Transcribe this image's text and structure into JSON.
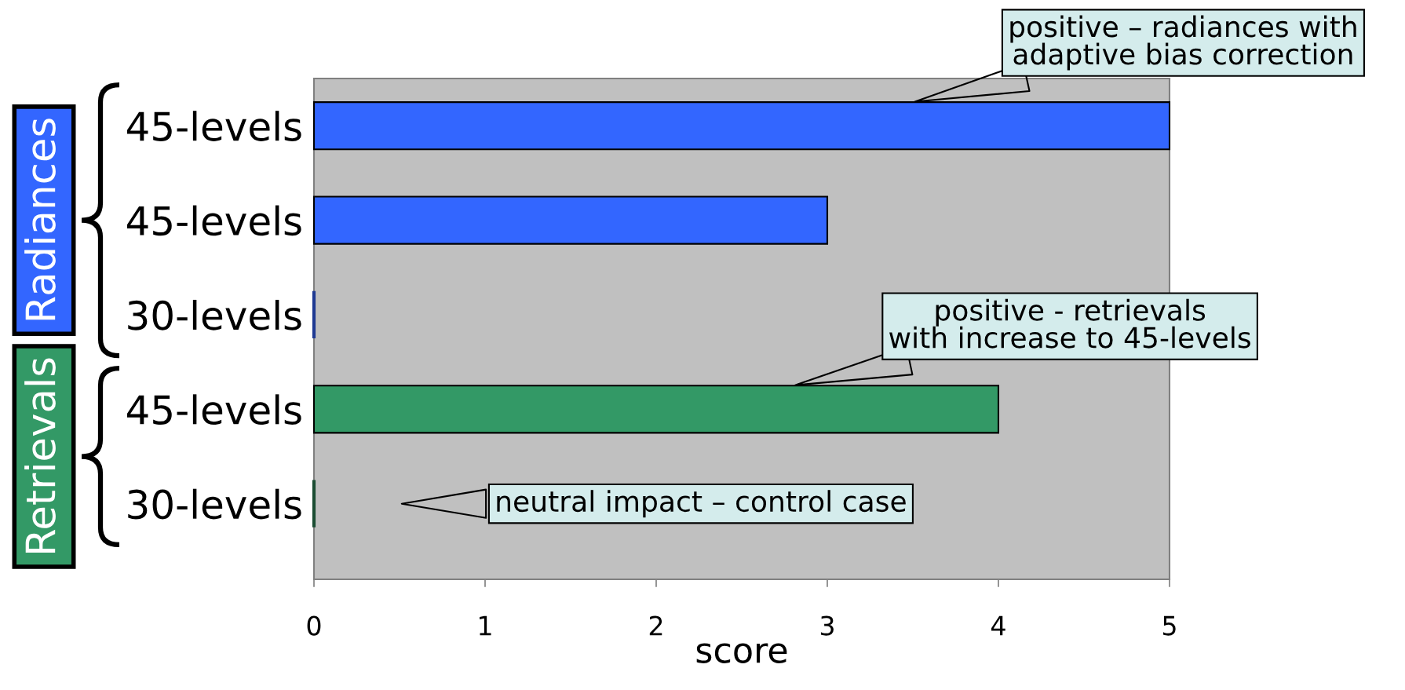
{
  "chart_data": [
    {
      "type": "bar",
      "orientation": "horizontal",
      "ylabel": "Radiances",
      "categories": [
        "45-levels",
        "45-levels",
        "30-levels"
      ],
      "values": [
        5,
        3,
        0
      ],
      "colors": [
        "#3366ff",
        "#3366ff",
        "#1f3a93"
      ],
      "xlim": [
        0,
        5
      ],
      "xticks": [
        0,
        1,
        2,
        3,
        4,
        5
      ],
      "tick_labels": "y",
      "annotations": [
        "positive – radiances with\nadaptive bias correction"
      ]
    },
    {
      "type": "bar",
      "orientation": "horizontal",
      "ylabel": "Retrievals",
      "xlabel": "score",
      "categories": [
        "45-levels",
        "30-levels"
      ],
      "values": [
        4,
        0
      ],
      "colors": [
        "#339966",
        "#1b4d33"
      ],
      "xlim": [
        0,
        5
      ],
      "xticks": [
        0,
        1,
        2,
        3,
        4,
        5
      ],
      "annotations": [
        "positive - retrievals\nwith increase to 45-levels",
        "neutral impact – control case"
      ]
    }
  ]
}
